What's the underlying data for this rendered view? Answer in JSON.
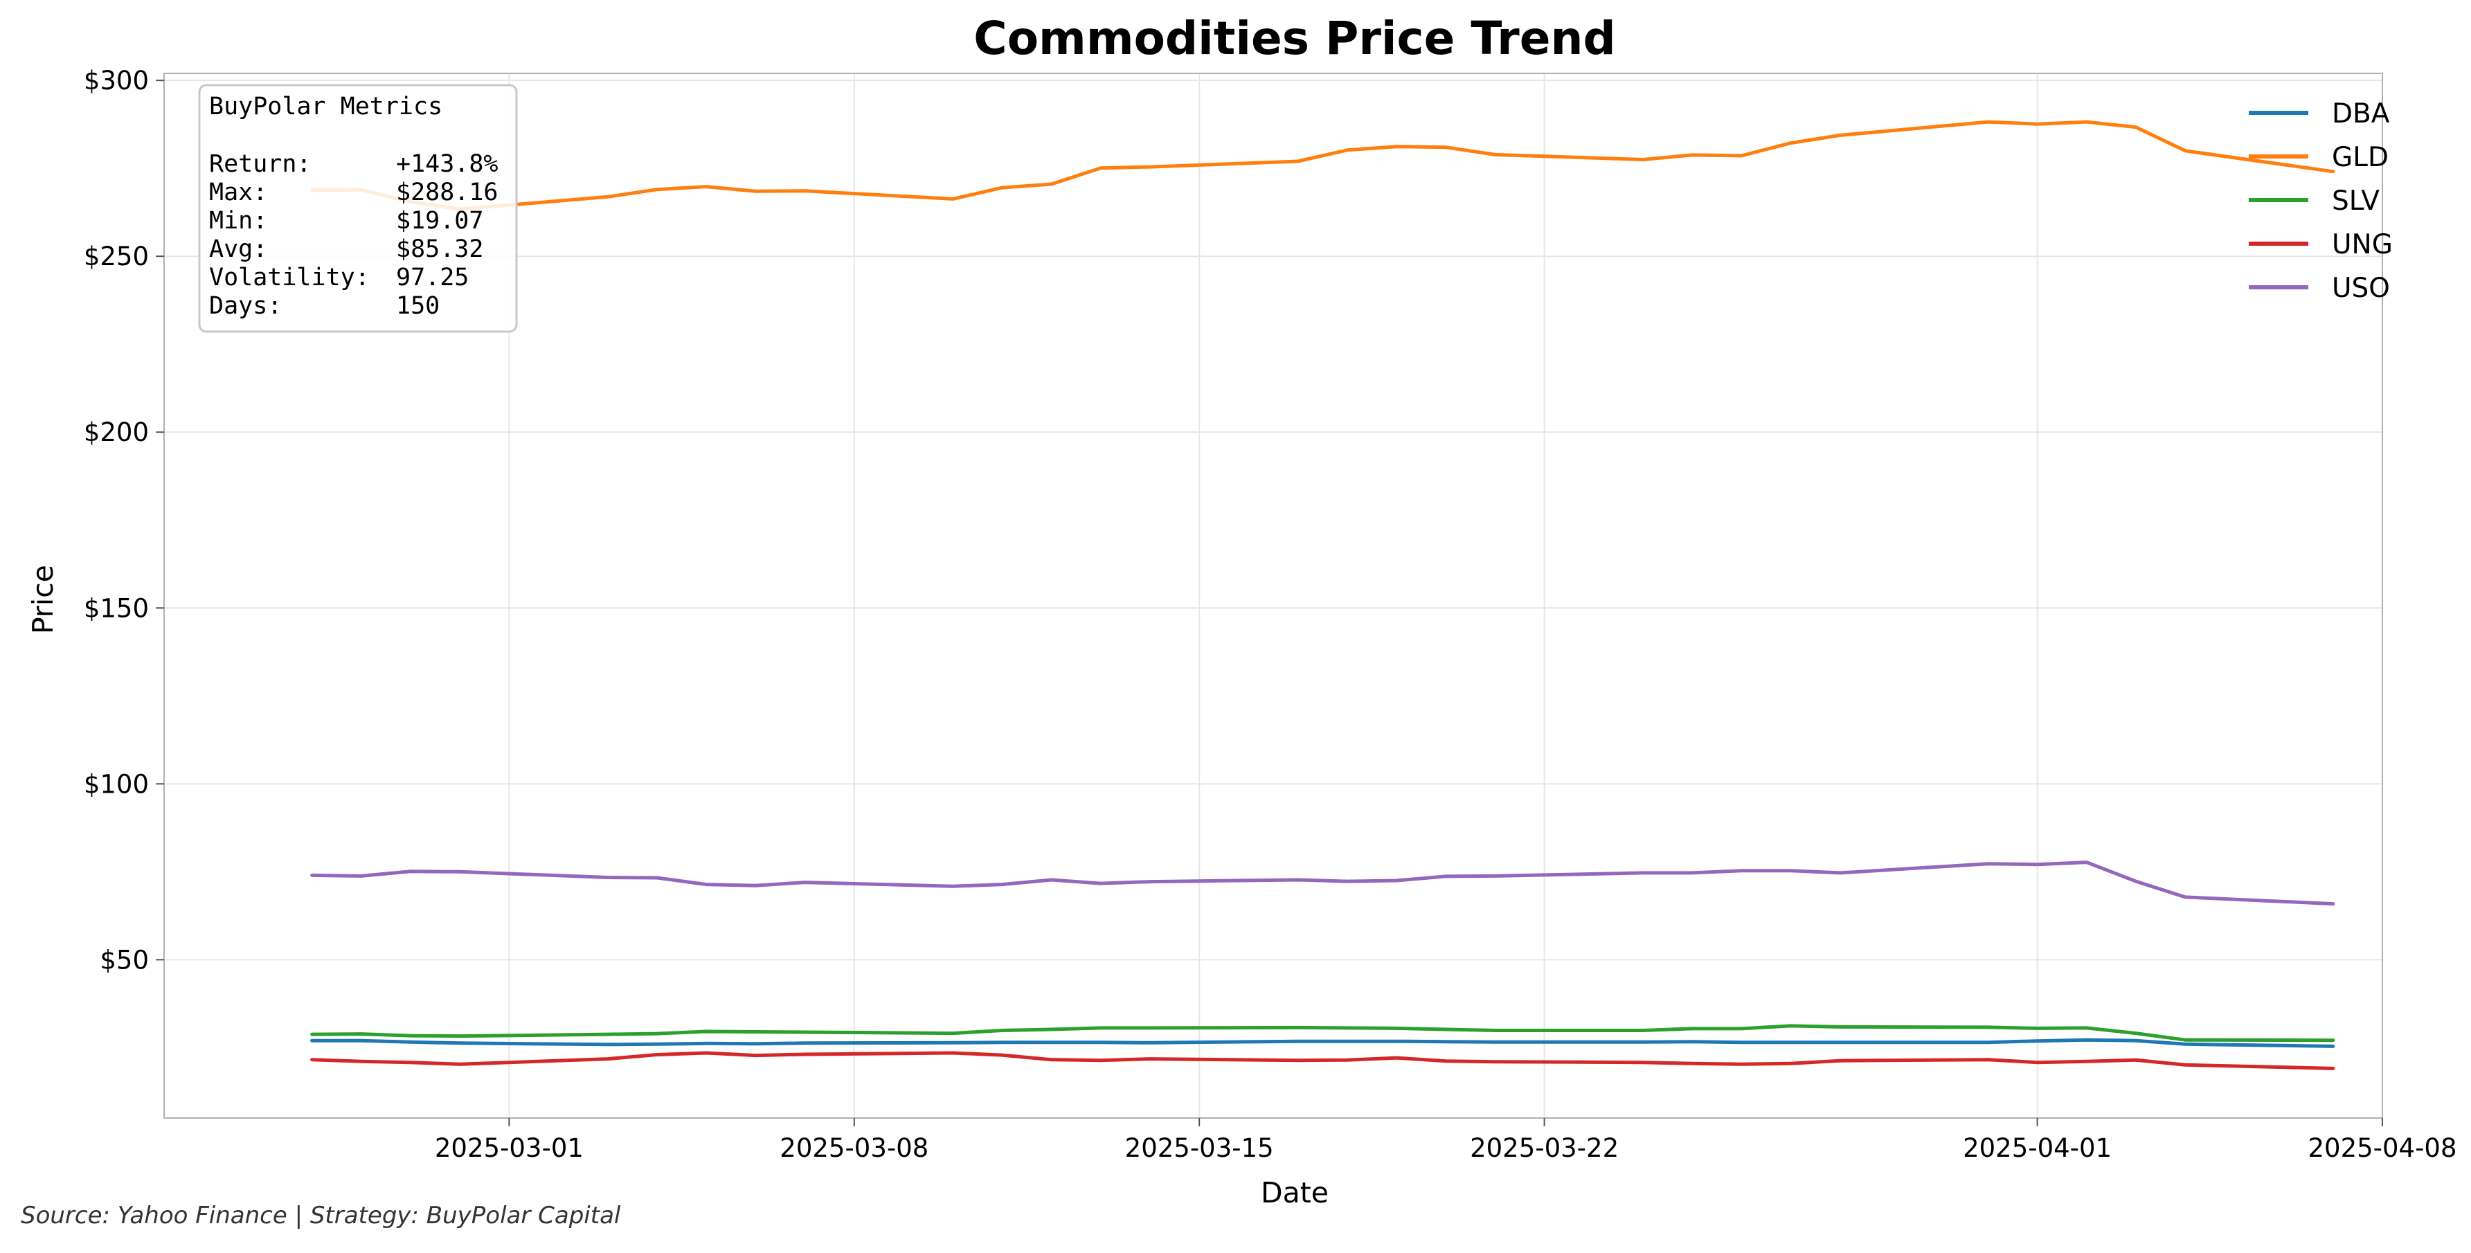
{
  "chart_data": {
    "type": "line",
    "title": "Commodities Price Trend",
    "xlabel": "Date",
    "ylabel": "Price",
    "x_range": [
      "2025-02-22",
      "2025-04-08"
    ],
    "ylim": [
      5,
      302
    ],
    "grid": true,
    "legend_position": "top-right",
    "x_ticks": [
      "2025-03-01",
      "2025-03-08",
      "2025-03-15",
      "2025-03-22",
      "2025-04-01",
      "2025-04-08"
    ],
    "y_ticks": [
      {
        "value": 50,
        "label": "$50"
      },
      {
        "value": 100,
        "label": "$100"
      },
      {
        "value": 150,
        "label": "$150"
      },
      {
        "value": 200,
        "label": "$200"
      },
      {
        "value": 250,
        "label": "$250"
      },
      {
        "value": 300,
        "label": "$300"
      }
    ],
    "dates": [
      "2025-02-25",
      "2025-02-26",
      "2025-02-27",
      "2025-02-28",
      "2025-03-03",
      "2025-03-04",
      "2025-03-05",
      "2025-03-06",
      "2025-03-07",
      "2025-03-10",
      "2025-03-11",
      "2025-03-12",
      "2025-03-13",
      "2025-03-14",
      "2025-03-17",
      "2025-03-18",
      "2025-03-19",
      "2025-03-20",
      "2025-03-21",
      "2025-03-24",
      "2025-03-25",
      "2025-03-26",
      "2025-03-27",
      "2025-03-28",
      "2025-03-31",
      "2025-04-01",
      "2025-04-02",
      "2025-04-03",
      "2025-04-04",
      "2025-04-07"
    ],
    "series": [
      {
        "name": "DBA",
        "color": "#1f77b4",
        "values": [
          27.0,
          27.0,
          26.6,
          26.3,
          25.9,
          26.0,
          26.2,
          26.1,
          26.3,
          26.4,
          26.5,
          26.5,
          26.5,
          26.4,
          26.8,
          26.8,
          26.8,
          26.7,
          26.6,
          26.6,
          26.7,
          26.5,
          26.5,
          26.5,
          26.5,
          26.9,
          27.2,
          27.0,
          26.0,
          25.4
        ]
      },
      {
        "name": "GLD",
        "color": "#ff7f0e",
        "values": [
          268.8,
          268.9,
          265.5,
          263.4,
          266.9,
          269.0,
          269.8,
          268.5,
          268.6,
          266.3,
          269.5,
          270.5,
          275.1,
          275.4,
          277.0,
          280.2,
          281.2,
          281.0,
          278.9,
          277.5,
          278.8,
          278.6,
          282.2,
          284.4,
          288.2,
          287.6,
          288.2,
          286.7,
          280.0,
          274.1
        ]
      },
      {
        "name": "SLV",
        "color": "#2ca02c",
        "values": [
          28.8,
          28.9,
          28.4,
          28.3,
          28.8,
          29.0,
          29.6,
          29.5,
          29.4,
          29.1,
          29.9,
          30.2,
          30.6,
          30.6,
          30.7,
          30.6,
          30.5,
          30.2,
          29.9,
          29.9,
          30.4,
          30.4,
          31.2,
          30.9,
          30.8,
          30.5,
          30.6,
          29.1,
          27.2,
          27.1
        ]
      },
      {
        "name": "UNG",
        "color": "#d62728",
        "values": [
          21.6,
          21.1,
          20.8,
          20.3,
          21.8,
          23.0,
          23.5,
          22.8,
          23.1,
          23.5,
          22.9,
          21.6,
          21.4,
          21.8,
          21.4,
          21.5,
          22.1,
          21.2,
          21.0,
          20.8,
          20.5,
          20.3,
          20.5,
          21.3,
          21.6,
          20.8,
          21.1,
          21.5,
          20.1,
          19.1
        ]
      },
      {
        "name": "USO",
        "color": "#9467bd",
        "values": [
          74.0,
          73.8,
          75.1,
          75.0,
          73.4,
          73.3,
          71.4,
          71.1,
          72.0,
          70.9,
          71.4,
          72.7,
          71.7,
          72.2,
          72.7,
          72.3,
          72.5,
          73.7,
          73.8,
          74.7,
          74.7,
          75.3,
          75.3,
          74.7,
          77.3,
          77.1,
          77.7,
          72.3,
          67.8,
          65.9
        ]
      }
    ]
  },
  "metrics": {
    "heading": "BuyPolar Metrics",
    "rows": [
      {
        "label": "Return:",
        "value": "+143.8%"
      },
      {
        "label": "Max:",
        "value": "$288.16"
      },
      {
        "label": "Min:",
        "value": "$19.07"
      },
      {
        "label": "Avg:",
        "value": "$85.32"
      },
      {
        "label": "Volatility:",
        "value": "97.25"
      },
      {
        "label": "Days:",
        "value": "150"
      }
    ]
  },
  "source_note": "Source: Yahoo Finance | Strategy: BuyPolar Capital"
}
